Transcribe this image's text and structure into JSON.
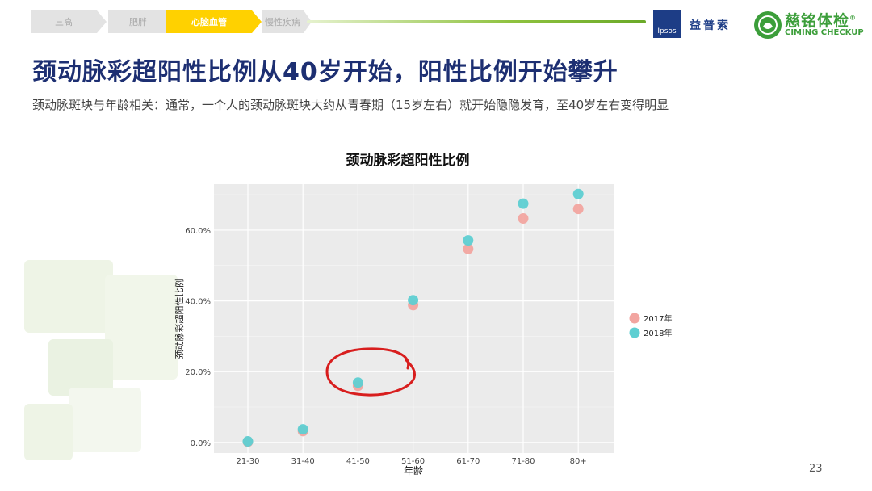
{
  "breadcrumb": {
    "items": [
      {
        "label": "三高",
        "active": false
      },
      {
        "label": "肥胖",
        "active": false
      },
      {
        "label": "心脑血管",
        "active": true
      },
      {
        "label": "慢性疾病",
        "active": false
      }
    ]
  },
  "logos": {
    "ipsos": {
      "mark": "Ipsos",
      "name": "益普索"
    },
    "ciming": {
      "name_cn": "慈铭体检",
      "name_en": "CIMING CHECKUP",
      "registered": "®"
    }
  },
  "page": {
    "title": "颈动脉彩超阳性比例从40岁开始，阳性比例开始攀升",
    "subtitle": "颈动脉斑块与年龄相关：通常，一个人的颈动脉斑块大约从青春期（15岁左右）就开始隐隐发育，至40岁左右变得明显",
    "page_number": "23"
  },
  "colors": {
    "title": "#1d2f72",
    "series_2017": "#f2a5a0",
    "series_2018": "#5ecfd2",
    "annotation": "#d81e1e",
    "active_tab": "#ffd100",
    "plot_bg": "#ebebeb"
  },
  "chart_data": {
    "type": "scatter",
    "title": "颈动脉彩超阳性比例",
    "xlabel": "年龄",
    "ylabel": "颈动脉彩超阳性比例",
    "categories": [
      "21-30",
      "31-40",
      "41-50",
      "51-60",
      "61-70",
      "71-80",
      "80+"
    ],
    "y_ticks": [
      0,
      20,
      40,
      60
    ],
    "y_tick_labels": [
      "0.0%",
      "20.0%",
      "40.0%",
      "60.0%"
    ],
    "ylim": [
      -3,
      73
    ],
    "grid": true,
    "legend_position": "right",
    "series": [
      {
        "name": "2017年",
        "values": [
          0.2,
          3.2,
          16.0,
          38.8,
          54.7,
          63.3,
          66.0
        ]
      },
      {
        "name": "2018年",
        "values": [
          0.3,
          3.7,
          16.9,
          40.2,
          57.1,
          67.5,
          70.2
        ]
      }
    ],
    "annotation": {
      "type": "hand-drawn-circle",
      "category": "41-50"
    }
  }
}
